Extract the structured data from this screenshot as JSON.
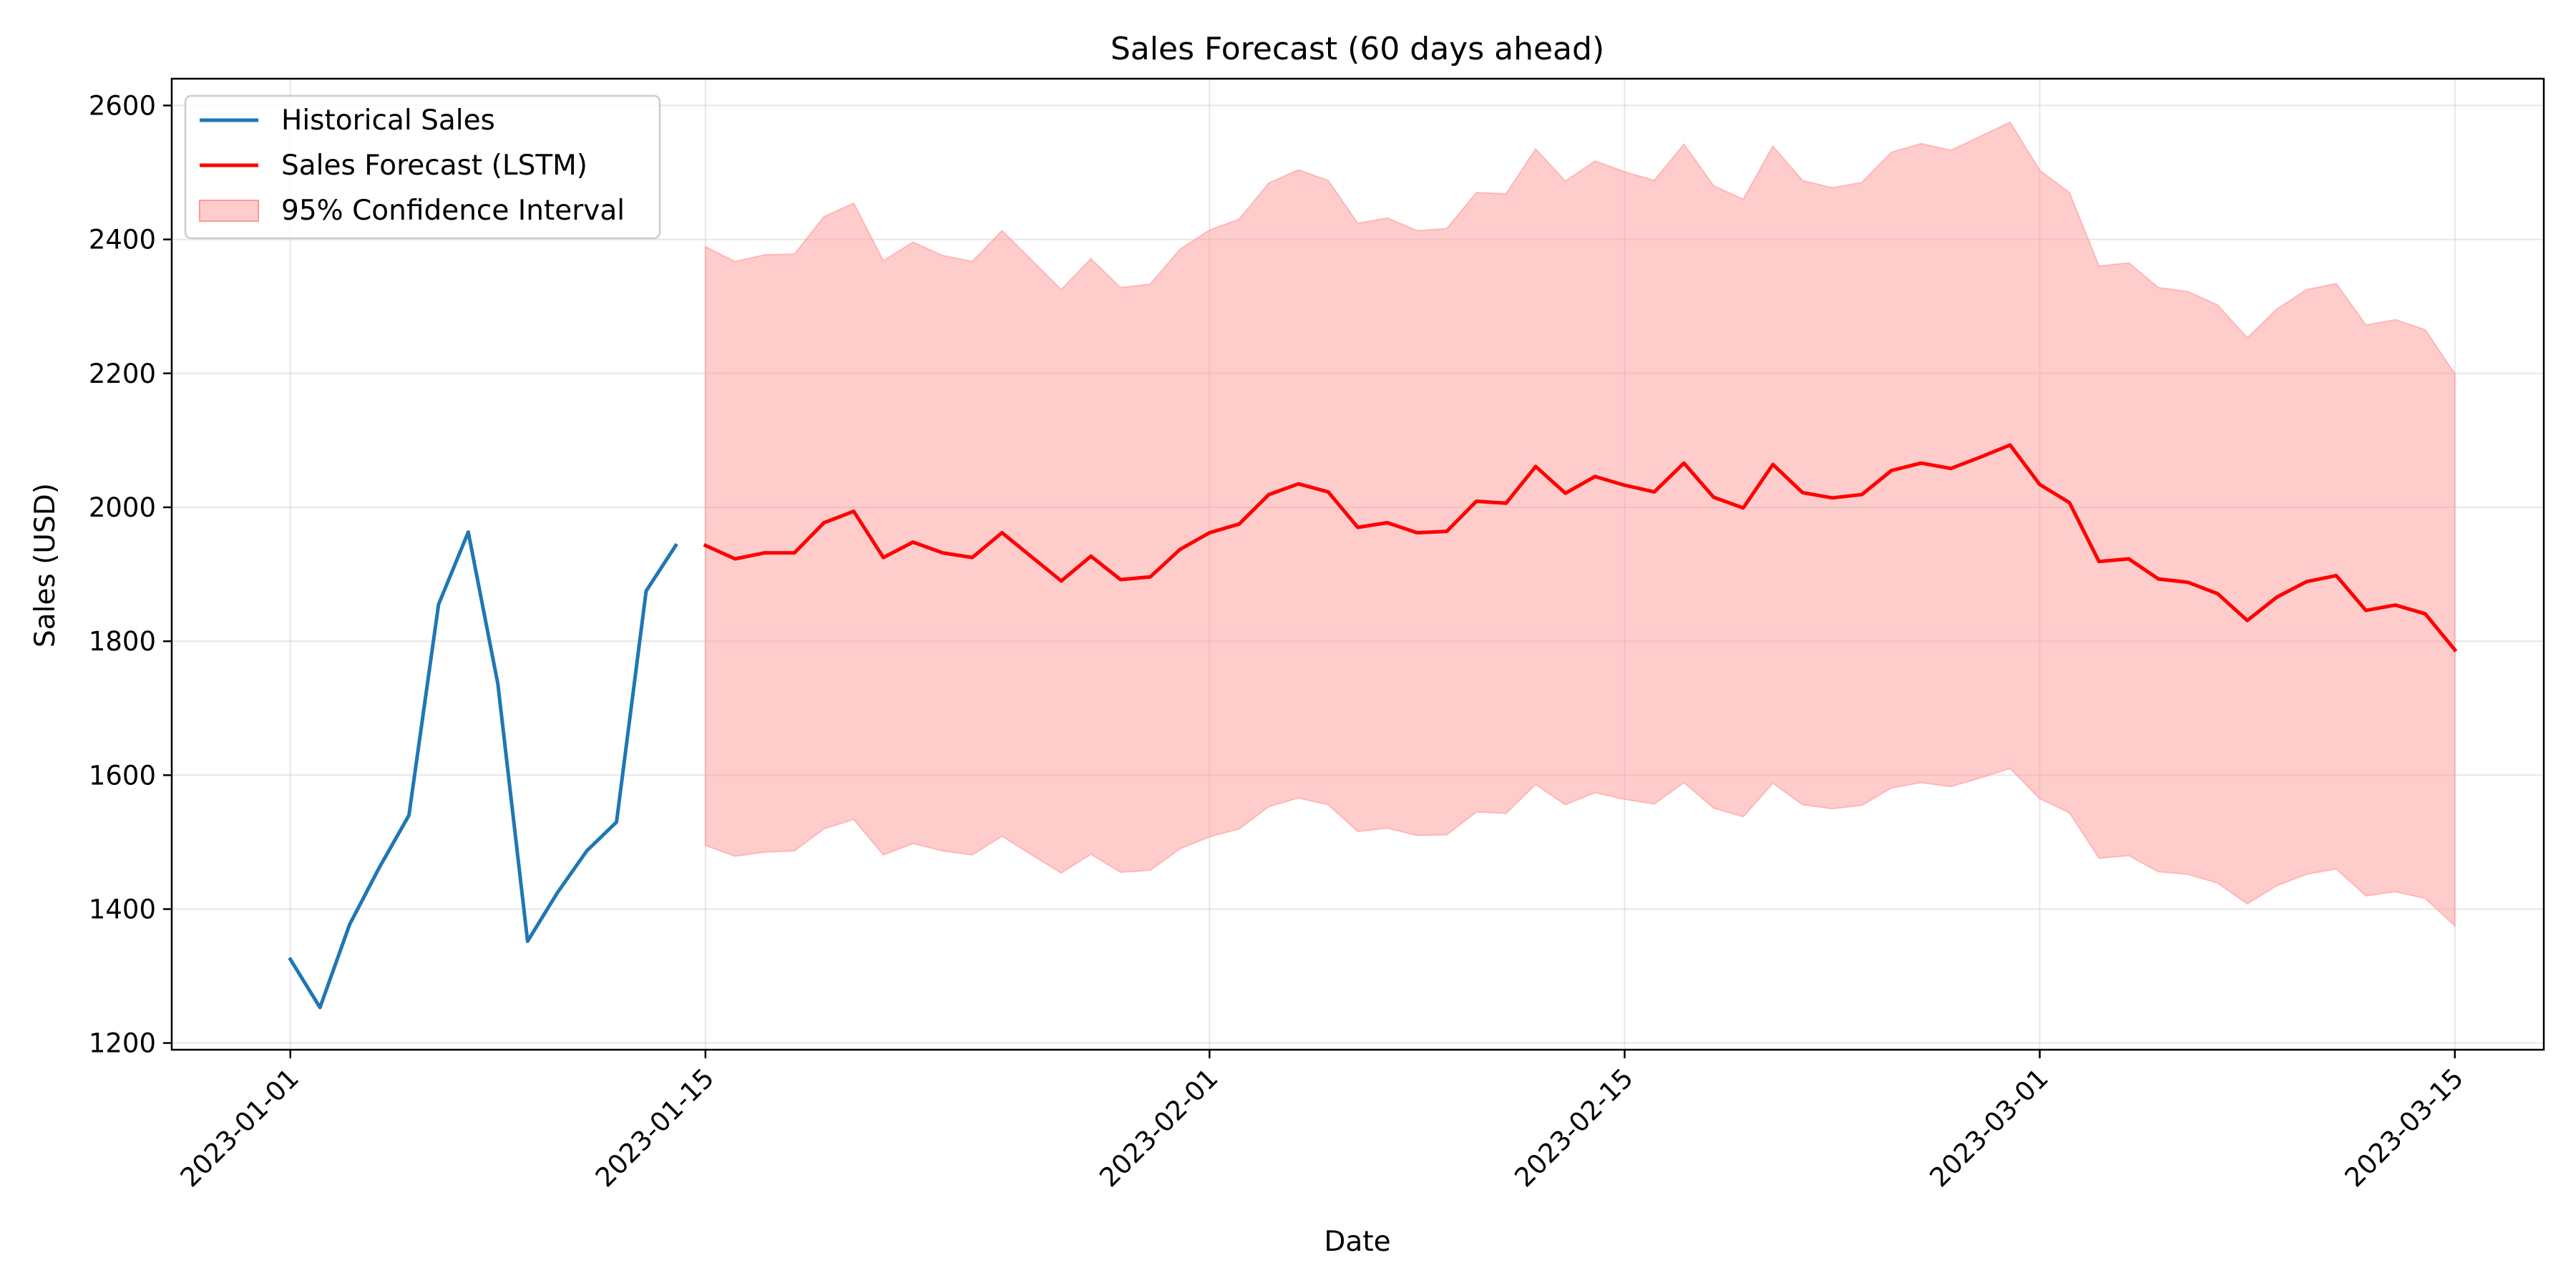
{
  "chart_data": {
    "type": "line",
    "title": "Sales Forecast (60 days ahead)",
    "xlabel": "Date",
    "ylabel": "Sales (USD)",
    "x_axis_type": "date",
    "xlim": [
      "2022-12-28",
      "2023-03-18"
    ],
    "ylim": [
      1190,
      2640
    ],
    "x_ticks": [
      "2023-01-01",
      "2023-01-15",
      "2023-02-01",
      "2023-02-15",
      "2023-03-01",
      "2023-03-15"
    ],
    "y_ticks": [
      1200,
      1400,
      1600,
      1800,
      2000,
      2200,
      2400,
      2600
    ],
    "grid": true,
    "legend_position": "top-left",
    "colors": {
      "historical": "#1f77b4",
      "forecast": "#ff0000",
      "interval": "#ff9999"
    },
    "historical": {
      "name": "Historical Sales",
      "x": [
        "2023-01-01",
        "2023-01-02",
        "2023-01-03",
        "2023-01-04",
        "2023-01-05",
        "2023-01-06",
        "2023-01-07",
        "2023-01-08",
        "2023-01-09",
        "2023-01-10",
        "2023-01-11",
        "2023-01-12",
        "2023-01-13",
        "2023-01-14"
      ],
      "values": [
        1325,
        1253,
        1377,
        1462,
        1540,
        1855,
        1963,
        1736,
        1352,
        1424,
        1487,
        1530,
        1875,
        1943
      ]
    },
    "forecast": {
      "name": "Sales Forecast (LSTM)",
      "start": "2023-01-15",
      "values": [
        1943,
        1923,
        1932,
        1932,
        1977,
        1994,
        1925,
        1948,
        1932,
        1925,
        1962,
        1926,
        1890,
        1927,
        1892,
        1896,
        1937,
        1962,
        1975,
        2019,
        2035,
        2023,
        1970,
        1977,
        1962,
        1964,
        2009,
        2006,
        2061,
        2021,
        2046,
        2033,
        2023,
        2066,
        2015,
        1999,
        2064,
        2022,
        2014,
        2019,
        2055,
        2066,
        2058,
        2075,
        2093,
        2034,
        2007,
        1919,
        1923,
        1893,
        1888,
        1871,
        1831,
        1866,
        1889,
        1898,
        1846,
        1854,
        1841,
        1787
      ]
    },
    "confidence_interval": {
      "name": "95% Confidence Interval",
      "upper": [
        2389,
        2367,
        2377,
        2378,
        2434,
        2454,
        2368,
        2396,
        2376,
        2367,
        2413,
        2369,
        2325,
        2371,
        2328,
        2333,
        2385,
        2414,
        2430,
        2484,
        2504,
        2488,
        2424,
        2432,
        2413,
        2416,
        2470,
        2468,
        2535,
        2487,
        2517,
        2501,
        2488,
        2542,
        2480,
        2460,
        2539,
        2488,
        2477,
        2485,
        2530,
        2543,
        2533,
        2554,
        2575,
        2503,
        2470,
        2360,
        2365,
        2328,
        2322,
        2302,
        2253,
        2296,
        2325,
        2334,
        2272,
        2280,
        2265,
        2199
      ],
      "lower": [
        1495,
        1479,
        1485,
        1487,
        1520,
        1534,
        1481,
        1498,
        1487,
        1481,
        1509,
        1481,
        1454,
        1482,
        1455,
        1458,
        1490,
        1508,
        1520,
        1553,
        1566,
        1556,
        1516,
        1521,
        1510,
        1511,
        1545,
        1543,
        1586,
        1556,
        1574,
        1564,
        1557,
        1589,
        1551,
        1538,
        1588,
        1556,
        1550,
        1555,
        1581,
        1589,
        1583,
        1596,
        1610,
        1565,
        1544,
        1476,
        1480,
        1456,
        1452,
        1439,
        1408,
        1435,
        1452,
        1460,
        1420,
        1426,
        1416,
        1375
      ]
    }
  }
}
